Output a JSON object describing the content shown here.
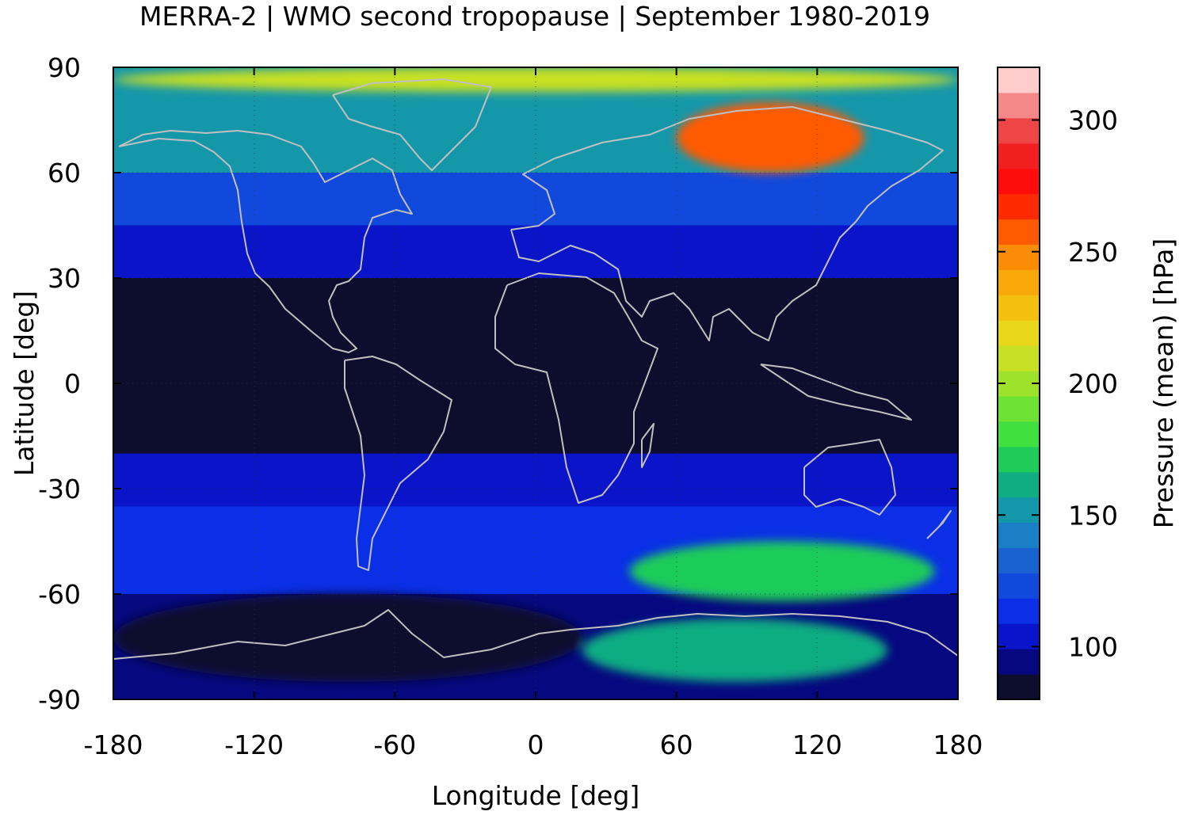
{
  "chart_data": {
    "type": "heatmap",
    "title": "MERRA-2 | WMO second tropopause | September 1980-2019",
    "xlabel": "Longitude [deg]",
    "ylabel": "Latitude [deg]",
    "xlim": [
      -180,
      180
    ],
    "ylim": [
      -90,
      90
    ],
    "xticks": [
      "-180",
      "-120",
      "-60",
      "0",
      "60",
      "120",
      "180"
    ],
    "yticks": [
      "90",
      "60",
      "30",
      "0",
      "-30",
      "-60",
      "-90"
    ],
    "grid": "dotted",
    "coastlines": true,
    "colorbar": {
      "label": "Pressure (mean) [hPa]",
      "range": [
        80,
        320
      ],
      "ticks": [
        "100",
        "150",
        "200",
        "250",
        "300"
      ],
      "colors": [
        "#0d0d2e",
        "#06087f",
        "#0a14c8",
        "#0a2fe6",
        "#1149dc",
        "#1963d0",
        "#1a7fc4",
        "#1597aa",
        "#10ad82",
        "#1fcc5a",
        "#3fe040",
        "#6ee335",
        "#9ee22b",
        "#c8e024",
        "#e8d61a",
        "#f4c00f",
        "#f8a80a",
        "#fb8c06",
        "#ff5a00",
        "#ff2a00",
        "#ff0d0d",
        "#f02020",
        "#ee4646",
        "#f48888",
        "#ffcccc"
      ]
    },
    "regions": [
      {
        "name": "tropics",
        "lat": [
          -20,
          30
        ],
        "value": 85
      },
      {
        "name": "subtropics-north",
        "lat": [
          30,
          45
        ],
        "value": 100
      },
      {
        "name": "midlat-north",
        "lat": [
          45,
          60
        ],
        "value": 120
      },
      {
        "name": "high-lat-north",
        "lat": [
          60,
          90
        ],
        "value": 150
      },
      {
        "name": "subtropics-south",
        "lat": [
          -35,
          -20
        ],
        "value": 105
      },
      {
        "name": "midlat-south",
        "lat": [
          -60,
          -35
        ],
        "value": 115
      },
      {
        "name": "southern-ocean-indian",
        "lon": [
          40,
          170
        ],
        "lat": [
          -62,
          -45
        ],
        "value": 170
      },
      {
        "name": "antarctic-interior",
        "lon": [
          20,
          150
        ],
        "lat": [
          -85,
          -67
        ],
        "value": 165
      },
      {
        "name": "antarctic-west",
        "lon": [
          -180,
          20
        ],
        "lat": [
          -85,
          -60
        ],
        "value": 85
      },
      {
        "name": "siberian-extremes",
        "lon": [
          60,
          140
        ],
        "lat": [
          60,
          80
        ],
        "value": 260
      },
      {
        "name": "arctic-cap",
        "lon": [
          -180,
          180
        ],
        "lat": [
          83,
          90
        ],
        "value": 210
      }
    ]
  }
}
